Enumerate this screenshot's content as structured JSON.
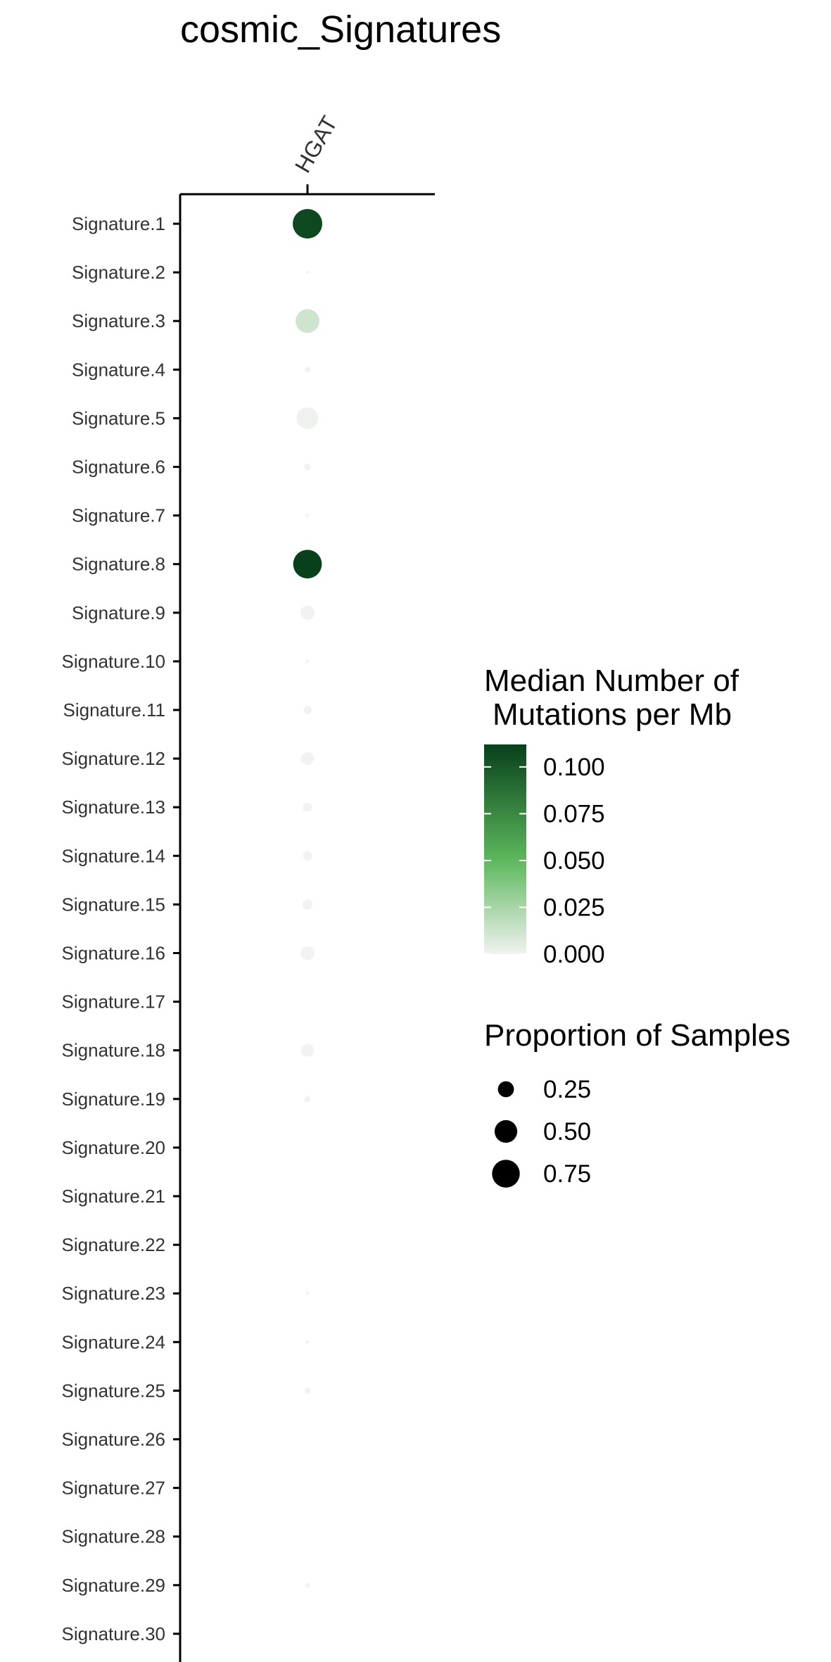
{
  "chart_data": {
    "type": "scatter",
    "title": "cosmic_Signatures",
    "x_categories": [
      "HGAT"
    ],
    "y_categories": [
      "Signature.1",
      "Signature.2",
      "Signature.3",
      "Signature.4",
      "Signature.5",
      "Signature.6",
      "Signature.7",
      "Signature.8",
      "Signature.9",
      "Signature.10",
      "Signature.11",
      "Signature.12",
      "Signature.13",
      "Signature.14",
      "Signature.15",
      "Signature.16",
      "Signature.17",
      "Signature.18",
      "Signature.19",
      "Signature.20",
      "Signature.21",
      "Signature.22",
      "Signature.23",
      "Signature.24",
      "Signature.25",
      "Signature.26",
      "Signature.27",
      "Signature.28",
      "Signature.29",
      "Signature.30"
    ],
    "points": [
      {
        "x": "HGAT",
        "y": "Signature.1",
        "median_mutations_per_mb": 0.108,
        "proportion_of_samples": 0.85
      },
      {
        "x": "HGAT",
        "y": "Signature.2",
        "median_mutations_per_mb": 0.0,
        "proportion_of_samples": 0.01
      },
      {
        "x": "HGAT",
        "y": "Signature.3",
        "median_mutations_per_mb": 0.012,
        "proportion_of_samples": 0.55
      },
      {
        "x": "HGAT",
        "y": "Signature.4",
        "median_mutations_per_mb": 0.0,
        "proportion_of_samples": 0.04
      },
      {
        "x": "HGAT",
        "y": "Signature.5",
        "median_mutations_per_mb": 0.001,
        "proportion_of_samples": 0.45
      },
      {
        "x": "HGAT",
        "y": "Signature.6",
        "median_mutations_per_mb": 0.0,
        "proportion_of_samples": 0.04
      },
      {
        "x": "HGAT",
        "y": "Signature.7",
        "median_mutations_per_mb": 0.0,
        "proportion_of_samples": 0.01
      },
      {
        "x": "HGAT",
        "y": "Signature.8",
        "median_mutations_per_mb": 0.112,
        "proportion_of_samples": 0.8
      },
      {
        "x": "HGAT",
        "y": "Signature.9",
        "median_mutations_per_mb": 0.0,
        "proportion_of_samples": 0.19
      },
      {
        "x": "HGAT",
        "y": "Signature.10",
        "median_mutations_per_mb": 0.0,
        "proportion_of_samples": 0.01
      },
      {
        "x": "HGAT",
        "y": "Signature.11",
        "median_mutations_per_mb": 0.0,
        "proportion_of_samples": 0.06
      },
      {
        "x": "HGAT",
        "y": "Signature.12",
        "median_mutations_per_mb": 0.0,
        "proportion_of_samples": 0.16
      },
      {
        "x": "HGAT",
        "y": "Signature.13",
        "median_mutations_per_mb": 0.0,
        "proportion_of_samples": 0.08
      },
      {
        "x": "HGAT",
        "y": "Signature.14",
        "median_mutations_per_mb": 0.0,
        "proportion_of_samples": 0.08
      },
      {
        "x": "HGAT",
        "y": "Signature.15",
        "median_mutations_per_mb": 0.0,
        "proportion_of_samples": 0.1
      },
      {
        "x": "HGAT",
        "y": "Signature.16",
        "median_mutations_per_mb": 0.0,
        "proportion_of_samples": 0.19
      },
      {
        "x": "HGAT",
        "y": "Signature.17",
        "median_mutations_per_mb": 0.0,
        "proportion_of_samples": 0.0
      },
      {
        "x": "HGAT",
        "y": "Signature.18",
        "median_mutations_per_mb": 0.0,
        "proportion_of_samples": 0.16
      },
      {
        "x": "HGAT",
        "y": "Signature.19",
        "median_mutations_per_mb": 0.0,
        "proportion_of_samples": 0.04
      },
      {
        "x": "HGAT",
        "y": "Signature.20",
        "median_mutations_per_mb": 0.0,
        "proportion_of_samples": 0.0
      },
      {
        "x": "HGAT",
        "y": "Signature.21",
        "median_mutations_per_mb": 0.0,
        "proportion_of_samples": 0.0
      },
      {
        "x": "HGAT",
        "y": "Signature.22",
        "median_mutations_per_mb": 0.0,
        "proportion_of_samples": 0.0
      },
      {
        "x": "HGAT",
        "y": "Signature.23",
        "median_mutations_per_mb": 0.0,
        "proportion_of_samples": 0.01
      },
      {
        "x": "HGAT",
        "y": "Signature.24",
        "median_mutations_per_mb": 0.0,
        "proportion_of_samples": 0.01
      },
      {
        "x": "HGAT",
        "y": "Signature.25",
        "median_mutations_per_mb": 0.0,
        "proportion_of_samples": 0.04
      },
      {
        "x": "HGAT",
        "y": "Signature.26",
        "median_mutations_per_mb": 0.0,
        "proportion_of_samples": 0.0
      },
      {
        "x": "HGAT",
        "y": "Signature.27",
        "median_mutations_per_mb": 0.0,
        "proportion_of_samples": 0.0
      },
      {
        "x": "HGAT",
        "y": "Signature.28",
        "median_mutations_per_mb": 0.0,
        "proportion_of_samples": 0.0
      },
      {
        "x": "HGAT",
        "y": "Signature.29",
        "median_mutations_per_mb": 0.0,
        "proportion_of_samples": 0.02
      },
      {
        "x": "HGAT",
        "y": "Signature.30",
        "median_mutations_per_mb": 0.0,
        "proportion_of_samples": 0.0
      }
    ],
    "color_legend": {
      "title_line1": "Median Number of",
      "title_line2": "Mutations per Mb",
      "ticks": [
        "0.100",
        "0.075",
        "0.050",
        "0.025",
        "0.000"
      ],
      "tick_values": [
        0.1,
        0.075,
        0.05,
        0.025,
        0.0
      ],
      "range": [
        0.0,
        0.112
      ],
      "color_low": "#f2f2f2",
      "color_mid": "#5cb85c",
      "color_high": "#08401c"
    },
    "size_legend": {
      "title": "Proportion of Samples",
      "labels": [
        "0.25",
        "0.50",
        "0.75"
      ],
      "values": [
        0.25,
        0.5,
        0.75
      ]
    },
    "grid": false,
    "legend_position": "right"
  }
}
